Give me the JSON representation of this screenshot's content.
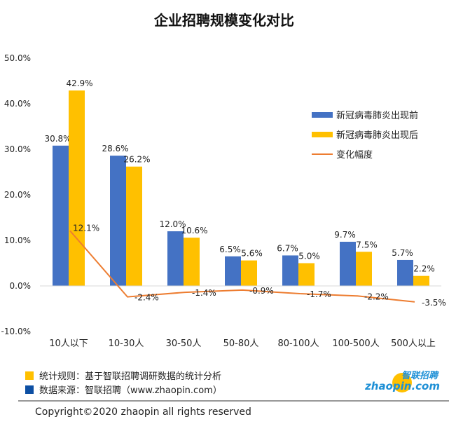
{
  "chart_data": {
    "type": "bar",
    "title": "企业招聘规模变化对比",
    "categories": [
      "10人以下",
      "10-30人",
      "30-50人",
      "50-80人",
      "80-100人",
      "100-500人",
      "500人以上"
    ],
    "series": [
      {
        "name": "新冠病毒肺炎出现前",
        "kind": "bar",
        "color": "#4472C4",
        "values": [
          30.8,
          28.6,
          12.0,
          6.5,
          6.7,
          9.7,
          5.7
        ],
        "labels": [
          "30.8%",
          "28.6%",
          "12.0%",
          "6.5%",
          "6.7%",
          "9.7%",
          "5.7%"
        ]
      },
      {
        "name": "新冠病毒肺炎出现后",
        "kind": "bar",
        "color": "#FFC000",
        "values": [
          42.9,
          26.2,
          10.6,
          5.6,
          5.0,
          7.5,
          2.2
        ],
        "labels": [
          "42.9%",
          "26.2%",
          "10.6%",
          "5.6%",
          "5.0%",
          "7.5%",
          "2.2%"
        ]
      },
      {
        "name": "变化幅度",
        "kind": "line",
        "color": "#ED7D31",
        "values": [
          12.1,
          -2.4,
          -1.4,
          -0.9,
          -1.7,
          -2.2,
          -3.5
        ],
        "labels": [
          "12.1%",
          "-2.4%",
          "-1.4%",
          "-0.9%",
          "-1.7%",
          "-2.2%",
          "-3.5%"
        ]
      }
    ],
    "yticks": [
      "-10.0%",
      "0.0%",
      "10.0%",
      "20.0%",
      "30.0%",
      "40.0%",
      "50.0%"
    ],
    "ylim": [
      -10,
      50
    ],
    "grid": false,
    "legend": "right"
  },
  "footer": {
    "rule_label": "统计规则：基于智联招聘调研数据的统计分析",
    "source_label": "数据来源：智联招聘（www.zhaopin.com）",
    "rule_color": "#FFC000",
    "source_color": "#0D4FA3",
    "logo_cn": "智联招聘",
    "logo_en": "zhaopin.com",
    "copyright": "Copyright©2020 zhaopin all rights reserved"
  }
}
